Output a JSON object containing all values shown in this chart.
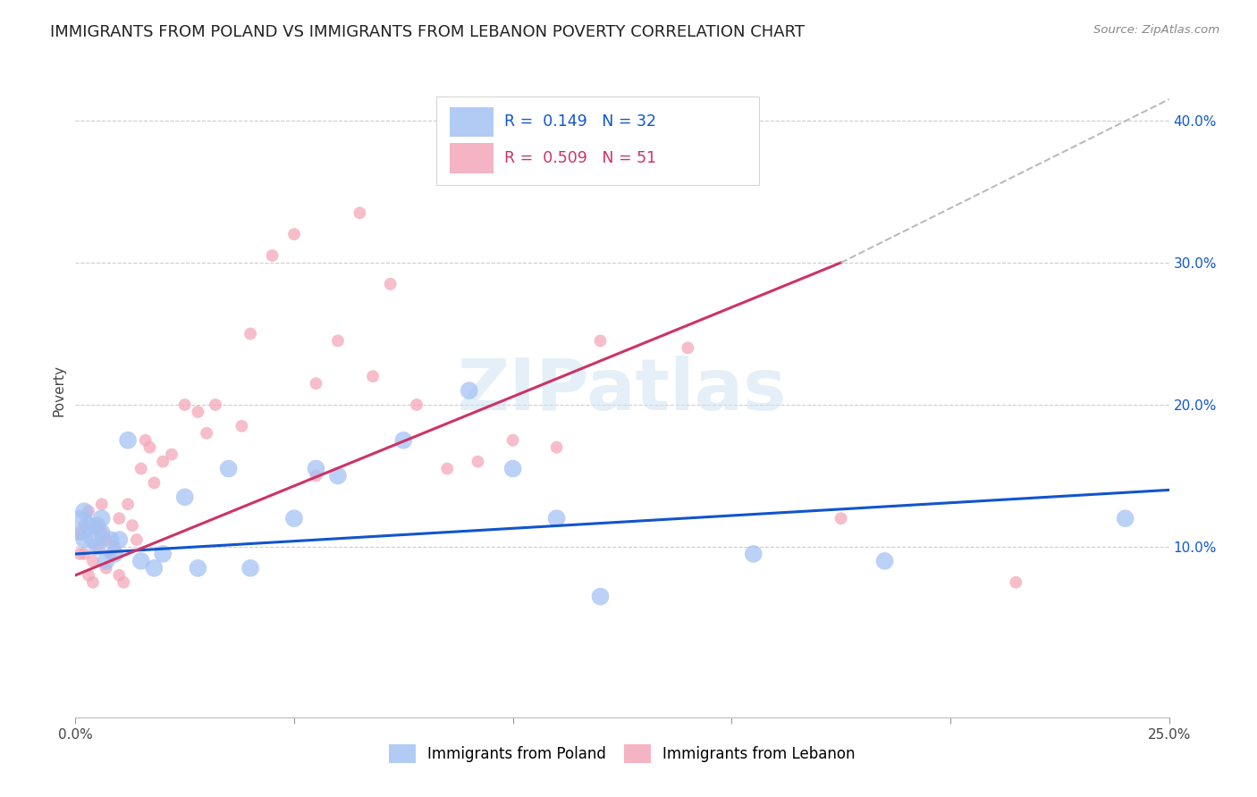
{
  "title": "IMMIGRANTS FROM POLAND VS IMMIGRANTS FROM LEBANON POVERTY CORRELATION CHART",
  "source": "Source: ZipAtlas.com",
  "ylabel": "Poverty",
  "y_ticks": [
    0.1,
    0.2,
    0.3,
    0.4
  ],
  "y_tick_labels": [
    "10.0%",
    "20.0%",
    "30.0%",
    "40.0%"
  ],
  "x_range": [
    0.0,
    0.25
  ],
  "y_range": [
    -0.02,
    0.44
  ],
  "legend_poland_r": "R =  0.149",
  "legend_poland_n": "N = 32",
  "legend_lebanon_r": "R =  0.509",
  "legend_lebanon_n": "N = 51",
  "color_poland": "#a4c2f4",
  "color_lebanon": "#f4a7b9",
  "color_poland_line": "#1155cc",
  "color_lebanon_line": "#cc3366",
  "color_dashed": "#bbbbbb",
  "watermark_color": "#cfe2f3",
  "background_color": "#ffffff",
  "grid_color": "#cccccc",
  "poland_scatter_x": [
    0.001,
    0.002,
    0.002,
    0.003,
    0.004,
    0.005,
    0.005,
    0.006,
    0.006,
    0.007,
    0.008,
    0.009,
    0.01,
    0.012,
    0.015,
    0.018,
    0.02,
    0.025,
    0.028,
    0.035,
    0.04,
    0.05,
    0.055,
    0.06,
    0.075,
    0.09,
    0.1,
    0.11,
    0.12,
    0.155,
    0.185,
    0.24
  ],
  "poland_scatter_y": [
    0.115,
    0.125,
    0.105,
    0.115,
    0.105,
    0.115,
    0.1,
    0.12,
    0.11,
    0.09,
    0.105,
    0.095,
    0.105,
    0.175,
    0.09,
    0.085,
    0.095,
    0.135,
    0.085,
    0.155,
    0.085,
    0.12,
    0.155,
    0.15,
    0.175,
    0.21,
    0.155,
    0.12,
    0.065,
    0.095,
    0.09,
    0.12
  ],
  "poland_scatter_sizes": [
    600,
    200,
    200,
    200,
    200,
    200,
    200,
    200,
    200,
    200,
    200,
    200,
    200,
    200,
    200,
    200,
    200,
    200,
    200,
    200,
    200,
    200,
    200,
    200,
    200,
    200,
    200,
    200,
    200,
    200,
    200,
    200
  ],
  "lebanon_scatter_x": [
    0.001,
    0.001,
    0.002,
    0.002,
    0.003,
    0.003,
    0.004,
    0.004,
    0.005,
    0.005,
    0.006,
    0.006,
    0.007,
    0.007,
    0.008,
    0.009,
    0.01,
    0.01,
    0.011,
    0.012,
    0.013,
    0.014,
    0.015,
    0.016,
    0.017,
    0.018,
    0.02,
    0.022,
    0.025,
    0.028,
    0.03,
    0.032,
    0.038,
    0.04,
    0.045,
    0.05,
    0.055,
    0.055,
    0.06,
    0.065,
    0.068,
    0.072,
    0.078,
    0.085,
    0.092,
    0.1,
    0.11,
    0.12,
    0.14,
    0.175,
    0.215
  ],
  "lebanon_scatter_y": [
    0.11,
    0.095,
    0.115,
    0.095,
    0.125,
    0.08,
    0.075,
    0.09,
    0.1,
    0.115,
    0.13,
    0.11,
    0.105,
    0.085,
    0.095,
    0.1,
    0.12,
    0.08,
    0.075,
    0.13,
    0.115,
    0.105,
    0.155,
    0.175,
    0.17,
    0.145,
    0.16,
    0.165,
    0.2,
    0.195,
    0.18,
    0.2,
    0.185,
    0.25,
    0.305,
    0.32,
    0.15,
    0.215,
    0.245,
    0.335,
    0.22,
    0.285,
    0.2,
    0.155,
    0.16,
    0.175,
    0.17,
    0.245,
    0.24,
    0.12,
    0.075
  ],
  "lebanon_scatter_sizes": [
    200,
    200,
    200,
    200,
    200,
    200,
    200,
    200,
    200,
    200,
    200,
    200,
    200,
    200,
    200,
    200,
    200,
    200,
    200,
    200,
    200,
    200,
    200,
    200,
    200,
    200,
    200,
    200,
    200,
    200,
    200,
    200,
    200,
    200,
    200,
    200,
    200,
    200,
    200,
    200,
    200,
    200,
    200,
    200,
    200,
    200,
    200,
    200,
    200,
    200,
    200
  ],
  "poland_line_x": [
    0.0,
    0.25
  ],
  "poland_line_y": [
    0.095,
    0.14
  ],
  "lebanon_line_x": [
    0.0,
    0.175
  ],
  "lebanon_line_y": [
    0.08,
    0.3
  ],
  "dashed_line_x": [
    0.175,
    0.25
  ],
  "dashed_line_y": [
    0.3,
    0.415
  ],
  "bottom_legend_labels": [
    "Immigrants from Poland",
    "Immigrants from Lebanon"
  ],
  "title_fontsize": 13,
  "axis_tick_fontsize": 11,
  "ylabel_fontsize": 11
}
